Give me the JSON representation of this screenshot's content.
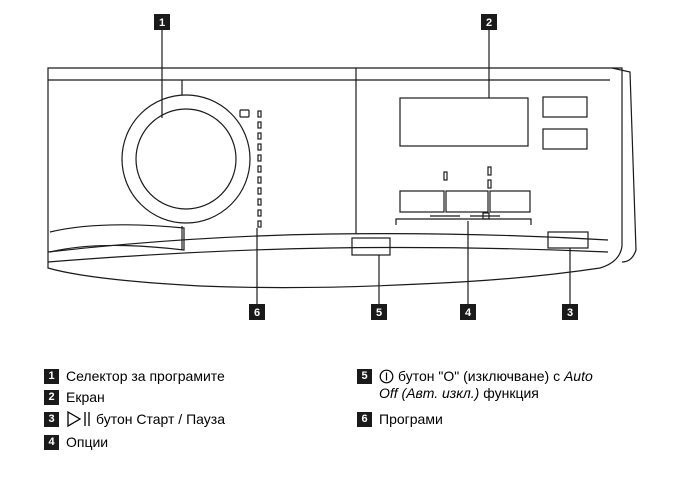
{
  "callouts": [
    "1",
    "2",
    "3",
    "4",
    "5",
    "6"
  ],
  "legend": [
    {
      "number": "1",
      "text": "Селектор за програмите"
    },
    {
      "number": "2",
      "text": "Екран"
    },
    {
      "number": "3",
      "icon": "play-pause-icon",
      "text": "бутон Старт / Пауза"
    },
    {
      "number": "4",
      "text": "Опции"
    },
    {
      "number": "5",
      "icon": "power-icon",
      "text_before": "бутон \"O\" (изключване) с ",
      "text_italic_1": "Auto",
      "text_italic_2": "Off (Авт. изкл.)",
      "text_after": " функция"
    },
    {
      "number": "6",
      "text": "Програми"
    }
  ],
  "colors": {
    "badge": "#1a1a1a",
    "line": "#1a1a1a",
    "background": "#ffffff"
  }
}
